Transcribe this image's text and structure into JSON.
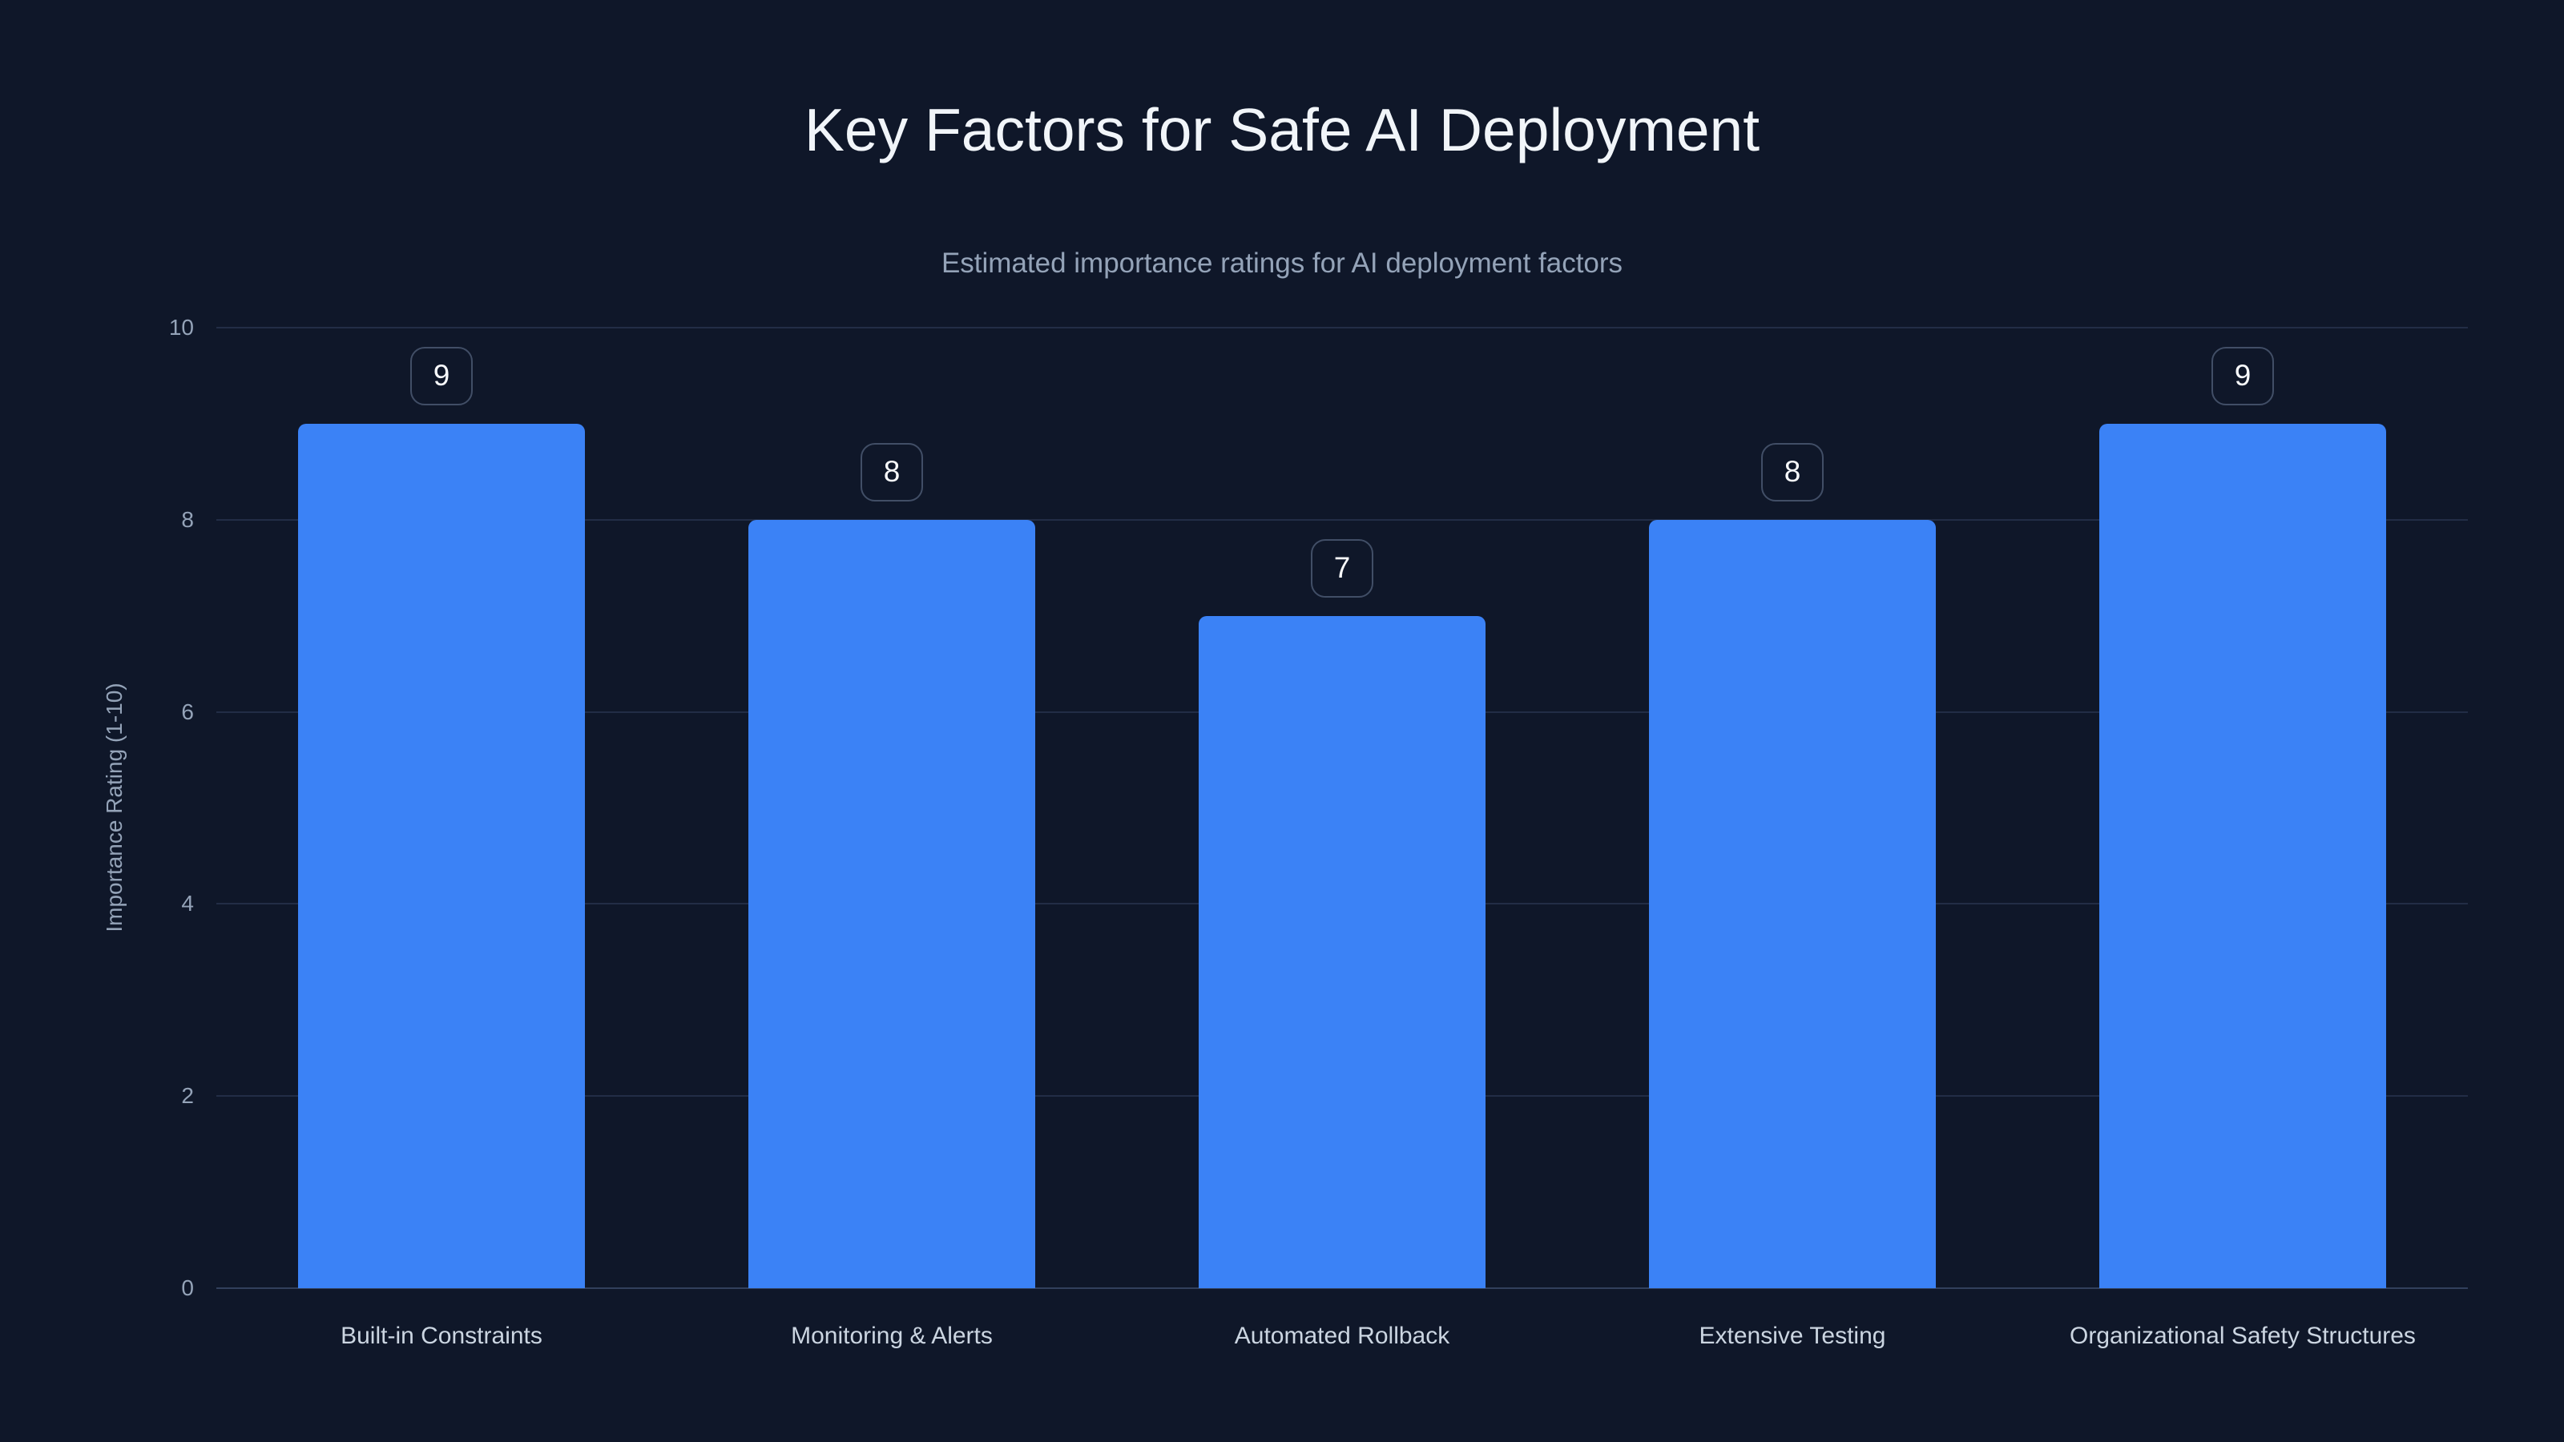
{
  "chart_data": {
    "type": "bar",
    "title": "Key Factors for Safe AI Deployment",
    "subtitle": "Estimated importance ratings for AI deployment factors",
    "categories": [
      "Built-in Constraints",
      "Monitoring & Alerts",
      "Automated Rollback",
      "Extensive Testing",
      "Organizational Safety Structures"
    ],
    "values": [
      9,
      8,
      7,
      8,
      9
    ],
    "xlabel": "",
    "ylabel": "Importance Rating (1-10)",
    "ylim": [
      0,
      10
    ],
    "y_ticks": [
      0,
      2,
      4,
      6,
      8,
      10
    ],
    "grid": "horizontal",
    "legend": "none",
    "bar_color": "#3b82f6"
  },
  "theme": {
    "background": "#0f1729",
    "title_color": "#f1f5f9",
    "subtitle_color": "#94a3b8",
    "tick_color": "#94a3b8",
    "axis_label_color": "#94a3b8",
    "category_label_color": "#cbd5e1",
    "bar_color": "#3b82f6",
    "gridline_color": "#222d46",
    "baseline_color": "#32405c",
    "badge_border_color": "#414e66",
    "badge_text_color": "#f8fafc"
  }
}
